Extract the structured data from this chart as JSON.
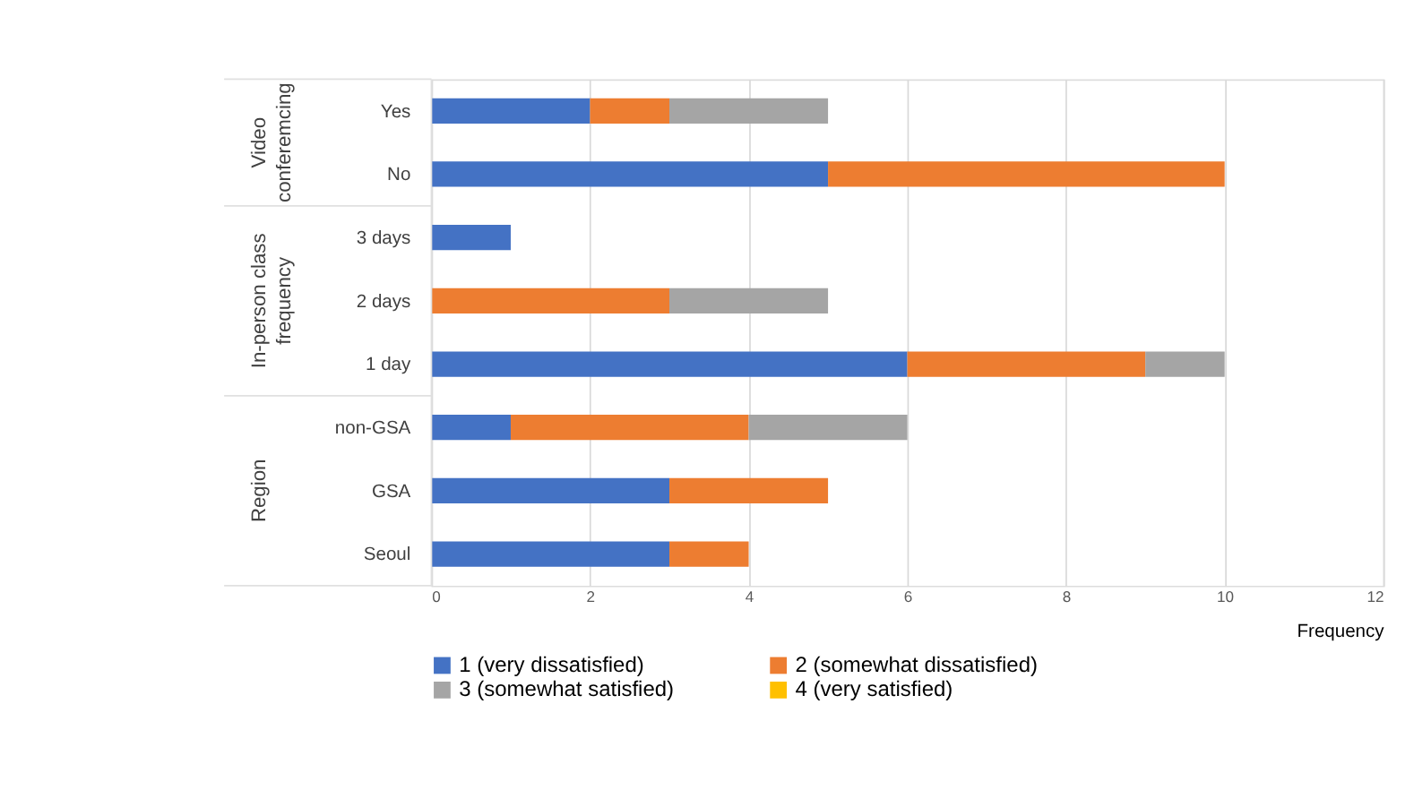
{
  "chart_data": {
    "type": "bar",
    "orientation": "horizontal",
    "stacked": true,
    "xlabel": "Frequency",
    "categories": [
      "Yes",
      "No",
      "3 days",
      "2 days",
      "1 day",
      "non-GSA",
      "GSA",
      "Seoul"
    ],
    "series": [
      {
        "name": "1 (very dissatisfied)",
        "color": "#4472c4",
        "values": [
          2,
          5,
          1,
          0,
          6,
          1,
          3,
          3
        ]
      },
      {
        "name": "2 (somewhat dissatisfied)",
        "color": "#ed7d31",
        "values": [
          1,
          5,
          0,
          3,
          3,
          3,
          2,
          1
        ]
      },
      {
        "name": "3 (somewhat satisfied)",
        "color": "#a5a5a5",
        "values": [
          2,
          0,
          0,
          2,
          1,
          2,
          0,
          0
        ]
      },
      {
        "name": "4 (very satisfied)",
        "color": "#ffc000",
        "values": [
          0,
          0,
          0,
          0,
          0,
          0,
          0,
          0
        ]
      }
    ],
    "annotations": [
      "Video conferemcing",
      "In-person class frequency",
      "Region"
    ],
    "xlim": [
      0,
      12
    ],
    "xticks": [
      0,
      2,
      4,
      6,
      8,
      10,
      12
    ],
    "grid": "x",
    "legend": "bottom"
  }
}
